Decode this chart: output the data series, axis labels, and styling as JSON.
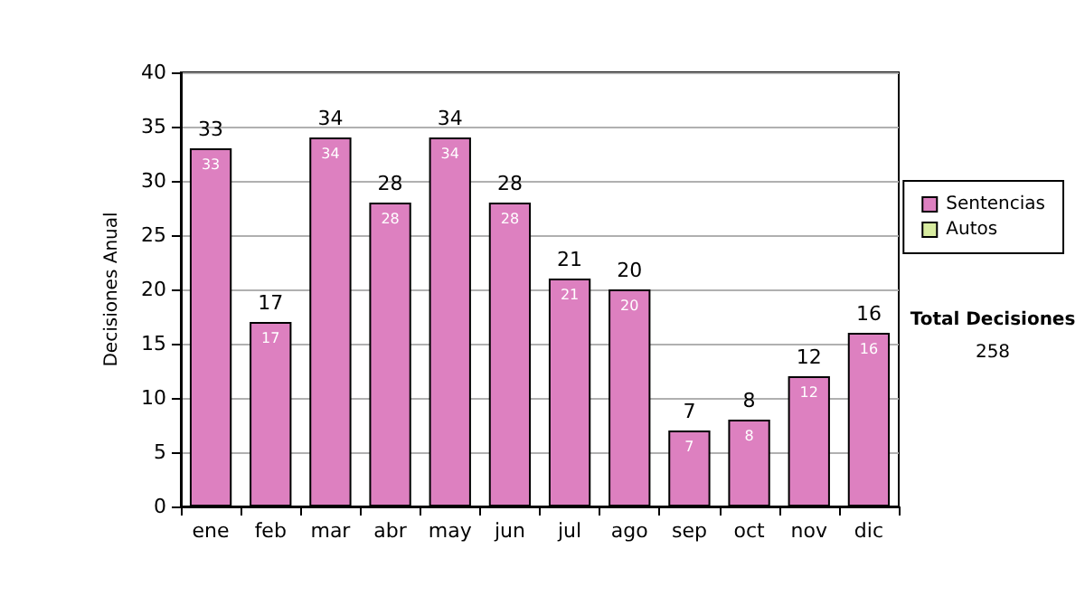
{
  "chart_data": {
    "type": "bar",
    "stacked": true,
    "ylabel": "Decisiones Anual",
    "categories": [
      "ene",
      "feb",
      "mar",
      "abr",
      "may",
      "jun",
      "jul",
      "ago",
      "sep",
      "oct",
      "nov",
      "dic"
    ],
    "series": [
      {
        "name": "Sentencias",
        "color": "#dd80c0",
        "values": [
          33,
          17,
          34,
          28,
          34,
          28,
          21,
          20,
          7,
          8,
          12,
          16
        ],
        "value_labels": [
          "33",
          "17",
          "34",
          "28",
          "34",
          "28",
          "21",
          "20",
          "7",
          "8",
          "12",
          "16"
        ]
      },
      {
        "name": "Autos",
        "color": "#d8eca0",
        "values": [
          0,
          0,
          0,
          0,
          0,
          0,
          0,
          0,
          0,
          0,
          0,
          0
        ]
      }
    ],
    "totals": [
      "33",
      "17",
      "34",
      "28",
      "34",
      "28",
      "21",
      "20",
      "7",
      "8",
      "12",
      "16"
    ],
    "ylim": [
      0,
      40
    ],
    "yticks": [
      0,
      5,
      10,
      15,
      20,
      25,
      30,
      35,
      40
    ],
    "grid": "y",
    "legend": "right",
    "annotations": [
      "Total Decisiones",
      "258"
    ]
  }
}
